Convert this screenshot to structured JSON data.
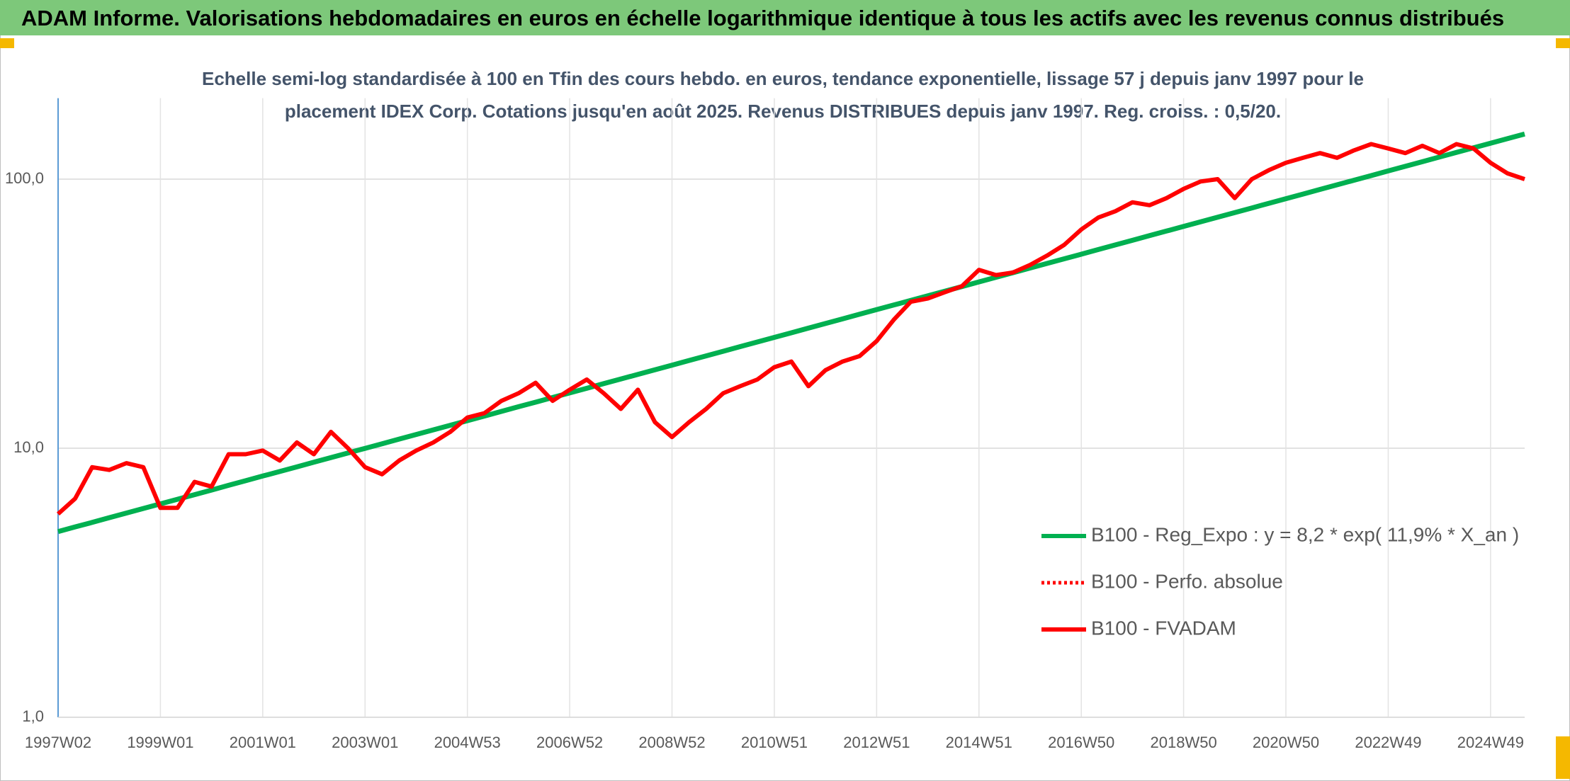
{
  "chart_data": {
    "type": "line",
    "title": "ADAM Informe. Valorisations hebdomadaires en euros en échelle logarithmique identique à tous les actifs avec les revenus connus distribués",
    "subtitle": [
      "Echelle semi-log standardisée à 100 en Tfin des cours hebdo. en euros, tendance exponentielle, lissage 57 j depuis janv 1997 pour le",
      "placement IDEX Corp. Cotations jusqu'en août 2025. Revenus DISTRIBUES depuis janv 1997. Reg. croiss. : 0,5/20."
    ],
    "categories": [
      "1997W02",
      null,
      null,
      null,
      null,
      null,
      "1999W01",
      null,
      null,
      null,
      null,
      null,
      "2001W01",
      null,
      null,
      null,
      null,
      null,
      "2003W01",
      null,
      null,
      null,
      null,
      null,
      "2004W53",
      null,
      null,
      null,
      null,
      null,
      "2006W52",
      null,
      null,
      null,
      null,
      null,
      "2008W52",
      null,
      null,
      null,
      null,
      null,
      "2010W51",
      null,
      null,
      null,
      null,
      null,
      "2012W51",
      null,
      null,
      null,
      null,
      null,
      "2014W51",
      null,
      null,
      null,
      null,
      null,
      "2016W50",
      null,
      null,
      null,
      null,
      null,
      "2018W50",
      null,
      null,
      null,
      null,
      null,
      "2020W50",
      null,
      null,
      null,
      null,
      null,
      "2022W49",
      null,
      null,
      null,
      null,
      null,
      "2024W49",
      null,
      null
    ],
    "series": [
      {
        "name": "B100 - Reg_Expo : y = 8,2 * exp( 11,9% *  X_an )",
        "color": "#00b050",
        "style": "solid",
        "values": [
          4.9,
          5.1,
          5.3,
          5.52,
          5.74,
          5.97,
          6.21,
          6.46,
          6.72,
          6.99,
          7.28,
          7.57,
          7.88,
          8.19,
          8.52,
          8.87,
          9.23,
          9.6,
          9.99,
          10.39,
          10.81,
          11.25,
          11.7,
          12.17,
          12.66,
          13.17,
          13.7,
          14.26,
          14.83,
          15.43,
          16.05,
          16.7,
          17.38,
          18.08,
          18.81,
          19.57,
          20.36,
          21.18,
          22.03,
          22.92,
          23.85,
          24.81,
          25.81,
          26.85,
          27.94,
          29.06,
          30.24,
          31.46,
          32.73,
          34.05,
          35.42,
          36.85,
          38.34,
          39.89,
          41.5,
          43.17,
          44.91,
          46.73,
          48.61,
          50.58,
          52.62,
          54.74,
          56.95,
          59.25,
          61.64,
          64.13,
          66.72,
          69.41,
          72.21,
          75.13,
          78.16,
          81.31,
          84.6,
          88.01,
          91.56,
          95.26,
          99.1,
          103.1,
          107.3,
          111.6,
          116.1,
          120.8,
          125.7,
          130.7,
          136,
          141.5,
          147.2
        ]
      },
      {
        "name": "B100 - Perfo. absolue",
        "color": "#ff0000",
        "style": "dotted",
        "values": [
          5.7,
          6.5,
          8.5,
          8.3,
          8.8,
          8.5,
          6,
          6,
          7.5,
          7.2,
          9.5,
          9.5,
          9.8,
          9,
          10.5,
          9.5,
          11.5,
          10,
          8.5,
          8,
          9,
          9.8,
          10.5,
          11.5,
          13,
          13.5,
          15,
          16,
          17.5,
          15,
          16.5,
          18,
          16,
          14,
          16.5,
          12.5,
          11,
          12.5,
          14,
          16,
          17,
          18,
          20,
          21,
          17,
          19.5,
          21,
          22,
          25,
          30,
          35,
          36,
          38,
          40,
          46,
          44,
          45,
          48,
          52,
          57,
          65,
          72,
          76,
          82,
          80,
          85,
          92,
          98,
          100,
          85,
          100,
          108,
          115,
          120,
          125,
          120,
          128,
          135,
          130,
          125,
          133,
          125,
          135,
          130,
          115,
          105,
          100
        ]
      },
      {
        "name": "B100 - FVADAM",
        "color": "#ff0000",
        "style": "solid",
        "values": [
          5.7,
          6.5,
          8.5,
          8.3,
          8.8,
          8.5,
          6,
          6,
          7.5,
          7.2,
          9.5,
          9.5,
          9.8,
          9,
          10.5,
          9.5,
          11.5,
          10,
          8.5,
          8,
          9,
          9.8,
          10.5,
          11.5,
          13,
          13.5,
          15,
          16,
          17.5,
          15,
          16.5,
          18,
          16,
          14,
          16.5,
          12.5,
          11,
          12.5,
          14,
          16,
          17,
          18,
          20,
          21,
          17,
          19.5,
          21,
          22,
          25,
          30,
          35,
          36,
          38,
          40,
          46,
          44,
          45,
          48,
          52,
          57,
          65,
          72,
          76,
          82,
          80,
          85,
          92,
          98,
          100,
          85,
          100,
          108,
          115,
          120,
          125,
          120,
          128,
          135,
          130,
          125,
          133,
          125,
          135,
          130,
          115,
          105,
          100
        ]
      }
    ],
    "ylim": [
      1,
      200
    ],
    "yticks": [
      {
        "value": 1,
        "label": "1,0"
      },
      {
        "value": 10,
        "label": "10,0"
      },
      {
        "value": 100,
        "label": "100,0"
      }
    ],
    "log_scale": true,
    "grid": true,
    "legend": "lower-right"
  }
}
